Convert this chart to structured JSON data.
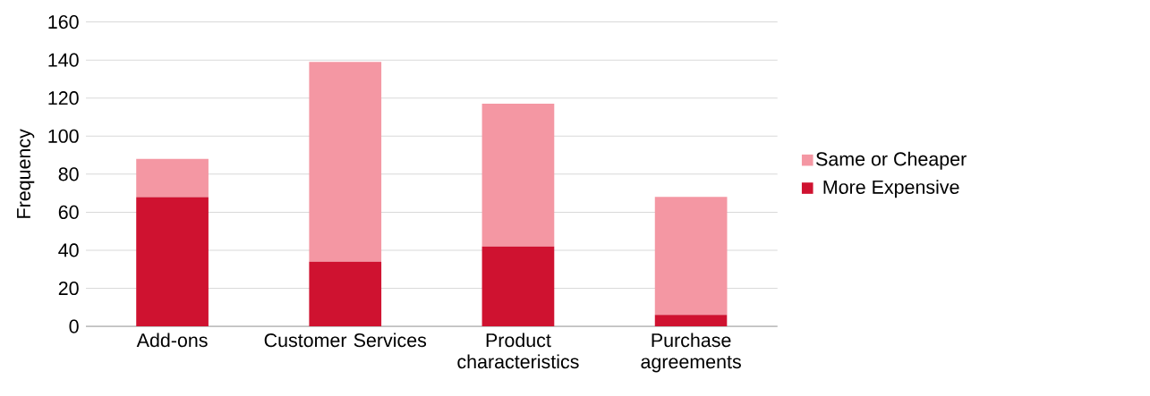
{
  "chart_data": {
    "type": "bar",
    "stacked": true,
    "ylabel": "Frequency",
    "categories": [
      "Add-ons",
      "Customer Services",
      "Product characteristics",
      "Purchase agreements"
    ],
    "series": [
      {
        "name": "More Expensive",
        "color": "#cf1230",
        "values": [
          68,
          34,
          42,
          6
        ]
      },
      {
        "name": "Same or Cheaper",
        "color": "#f497a3",
        "values": [
          20,
          105,
          75,
          62
        ]
      }
    ],
    "ylim": [
      0,
      160
    ],
    "yticks": [
      0,
      20,
      40,
      60,
      80,
      100,
      120,
      140,
      160
    ],
    "grid": "y",
    "legend": "right"
  }
}
